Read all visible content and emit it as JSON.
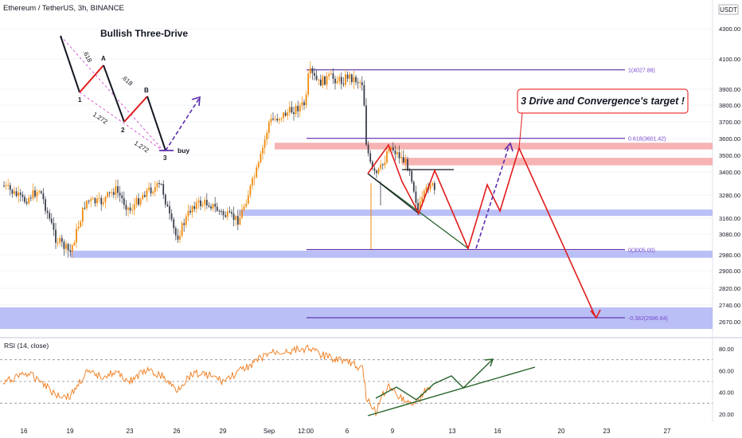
{
  "header": {
    "symbol_line": "Ethereum / TetherUS, 3h, BINANCE",
    "currency_badge": "USDT"
  },
  "chart_data": {
    "type": "candlestick",
    "title": "Ethereum / TetherUS, 3h, BINANCE",
    "price_axis": {
      "unit": "USDT",
      "ticks": [
        4300,
        4100,
        3900,
        3800,
        3700,
        3600,
        3500,
        3400,
        3280,
        3160,
        3080,
        2980,
        2900,
        2820,
        2740,
        2670
      ],
      "ylim": [
        2600,
        4400
      ]
    },
    "time_axis": {
      "ticks": [
        "16",
        "19",
        "23",
        "26",
        "29",
        "Sep",
        "12:00",
        "6",
        "9",
        "13",
        "16",
        "20",
        "23",
        "27"
      ]
    },
    "price_path": [
      {
        "t": "15",
        "p": 3330
      },
      {
        "t": "16",
        "p": 3250
      },
      {
        "t": "17",
        "p": 3310
      },
      {
        "t": "18",
        "p": 3060
      },
      {
        "t": "19",
        "p": 2990
      },
      {
        "t": "20",
        "p": 3250
      },
      {
        "t": "21",
        "p": 3240
      },
      {
        "t": "22",
        "p": 3310
      },
      {
        "t": "23",
        "p": 3200
      },
      {
        "t": "24",
        "p": 3300
      },
      {
        "t": "25",
        "p": 3330
      },
      {
        "t": "25.6",
        "p": 3150
      },
      {
        "t": "26",
        "p": 3060
      },
      {
        "t": "27",
        "p": 3230
      },
      {
        "t": "28",
        "p": 3240
      },
      {
        "t": "29",
        "p": 3180
      },
      {
        "t": "29.7",
        "p": 3150
      },
      {
        "t": "30",
        "p": 3290
      },
      {
        "t": "31",
        "p": 3440
      },
      {
        "t": "Sep",
        "p": 3700
      },
      {
        "t": "12:00",
        "p": 3810
      },
      {
        "t": "2.5",
        "p": 4020
      },
      {
        "t": "3",
        "p": 3940
      },
      {
        "t": "4",
        "p": 3980
      },
      {
        "t": "5",
        "p": 3950
      },
      {
        "t": "6",
        "p": 3990
      },
      {
        "t": "7",
        "p": 3940
      },
      {
        "t": "7.3",
        "p": 3580
      },
      {
        "t": "7.6",
        "p": 3420
      },
      {
        "t": "8",
        "p": 3380
      },
      {
        "t": "8.5",
        "p": 3450
      },
      {
        "t": "8.7",
        "p": 3560
      },
      {
        "t": "9",
        "p": 3540
      },
      {
        "t": "9.5",
        "p": 3480
      },
      {
        "t": "10",
        "p": 3420
      },
      {
        "t": "10.5",
        "p": 3200
      },
      {
        "t": "11",
        "p": 3280
      },
      {
        "t": "11.3",
        "p": 3350
      },
      {
        "t": "11.6",
        "p": 3300
      }
    ],
    "fib_levels": [
      {
        "label": "1(4027.88)",
        "value": 4027.88
      },
      {
        "label": "0.618(3601.42)",
        "value": 3601.42
      },
      {
        "label": "0(3005.00)",
        "value": 3005.0
      },
      {
        "label": "-0.382(2686.84)",
        "value": 2686.84
      }
    ],
    "zones": [
      {
        "kind": "resistance",
        "color": "#f6a6a6",
        "from": 3535,
        "to": 3575
      },
      {
        "kind": "resistance",
        "color": "#f6a6a6",
        "from": 3440,
        "to": 3485
      },
      {
        "kind": "support",
        "color": "#aeb4f5",
        "from": 3172,
        "to": 3205
      },
      {
        "kind": "support",
        "color": "#aeb4f5",
        "from": 2965,
        "to": 3000
      },
      {
        "kind": "support",
        "color": "#aeb4f5",
        "from": 2640,
        "to": 2730
      }
    ],
    "annotations": {
      "pattern_title": "Bullish Three-Drive",
      "target_callout": "3 Drive and Convergence's target !",
      "pattern_points": [
        "A",
        "B",
        "1",
        "2",
        "3"
      ],
      "ratios": [
        ".618",
        ".618",
        "1.272",
        "1.272"
      ],
      "action": "buy"
    },
    "rsi": {
      "label": "RSI (14, close)",
      "ticks": [
        80.0,
        60.0,
        40.0,
        20.0
      ],
      "ylim": [
        14,
        86
      ],
      "bands": [
        70,
        50,
        30
      ],
      "path": [
        {
          "t": "15",
          "v": 48
        },
        {
          "t": "16",
          "v": 58
        },
        {
          "t": "17",
          "v": 52
        },
        {
          "t": "18",
          "v": 38
        },
        {
          "t": "19",
          "v": 36
        },
        {
          "t": "20",
          "v": 58
        },
        {
          "t": "21",
          "v": 55
        },
        {
          "t": "22",
          "v": 58
        },
        {
          "t": "23",
          "v": 50
        },
        {
          "t": "24",
          "v": 60
        },
        {
          "t": "25",
          "v": 55
        },
        {
          "t": "26",
          "v": 42
        },
        {
          "t": "27",
          "v": 58
        },
        {
          "t": "28",
          "v": 56
        },
        {
          "t": "29",
          "v": 50
        },
        {
          "t": "30",
          "v": 64
        },
        {
          "t": "31",
          "v": 70
        },
        {
          "t": "Sep",
          "v": 76
        },
        {
          "t": "12:00",
          "v": 80
        },
        {
          "t": "2.5",
          "v": 82
        },
        {
          "t": "3",
          "v": 75
        },
        {
          "t": "4",
          "v": 72
        },
        {
          "t": "5",
          "v": 70
        },
        {
          "t": "6",
          "v": 68
        },
        {
          "t": "7",
          "v": 62
        },
        {
          "t": "7.3",
          "v": 36
        },
        {
          "t": "7.6",
          "v": 26
        },
        {
          "t": "8",
          "v": 22
        },
        {
          "t": "8.5",
          "v": 40
        },
        {
          "t": "8.8",
          "v": 46
        },
        {
          "t": "9",
          "v": 42
        },
        {
          "t": "9.5",
          "v": 35
        },
        {
          "t": "10",
          "v": 30
        },
        {
          "t": "10.5",
          "v": 32
        },
        {
          "t": "11",
          "v": 40
        },
        {
          "t": "11.4",
          "v": 46
        }
      ]
    }
  }
}
